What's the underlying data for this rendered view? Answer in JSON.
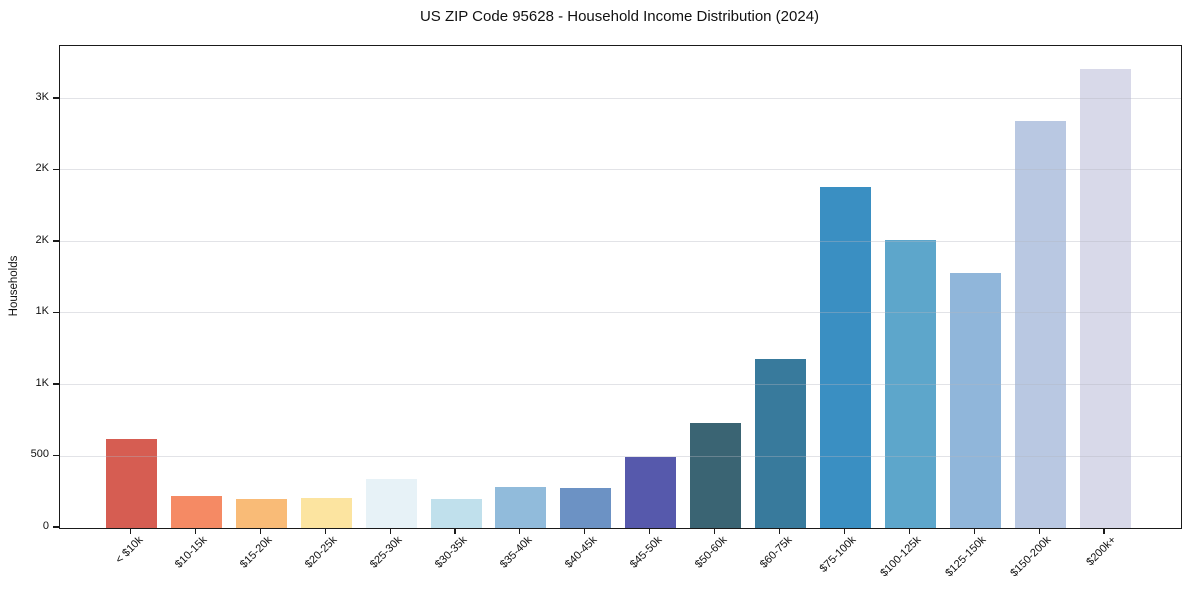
{
  "chart_data": {
    "type": "bar",
    "title": "US ZIP Code 95628 - Household Income Distribution (2024)",
    "xlabel": "",
    "ylabel": "Households",
    "categories": [
      "< $10k",
      "$10-15k",
      "$15-20k",
      "$20-25k",
      "$25-30k",
      "$30-35k",
      "$35-40k",
      "$40-45k",
      "$45-50k",
      "$50-60k",
      "$60-75k",
      "$75-100k",
      "$100-125k",
      "$125-150k",
      "$150-200k",
      "$200k+"
    ],
    "values": [
      620,
      225,
      205,
      213,
      345,
      205,
      290,
      283,
      497,
      735,
      1185,
      2385,
      2015,
      1780,
      2845,
      3210
    ],
    "bar_colors": [
      "#d65d52",
      "#f58a64",
      "#f9bb77",
      "#fce4a0",
      "#e7f2f7",
      "#c0e0ec",
      "#91bbdb",
      "#6c92c4",
      "#5659ac",
      "#3a6473",
      "#387a9c",
      "#3a8fc2",
      "#5da6cb",
      "#90b6da",
      "#b9c8e2",
      "#d8d9e9"
    ],
    "ylim": [
      0,
      3370
    ],
    "yticks": {
      "values": [
        0,
        500,
        1000,
        1500,
        2000,
        2500,
        3000
      ],
      "labels": [
        "0",
        "500",
        "1K",
        "1K",
        "2K",
        "2K",
        "3K"
      ]
    },
    "grid": "horizontal-only",
    "legend": "none",
    "axis_color": "#1a1a1a",
    "background_color": "#ffffff"
  }
}
